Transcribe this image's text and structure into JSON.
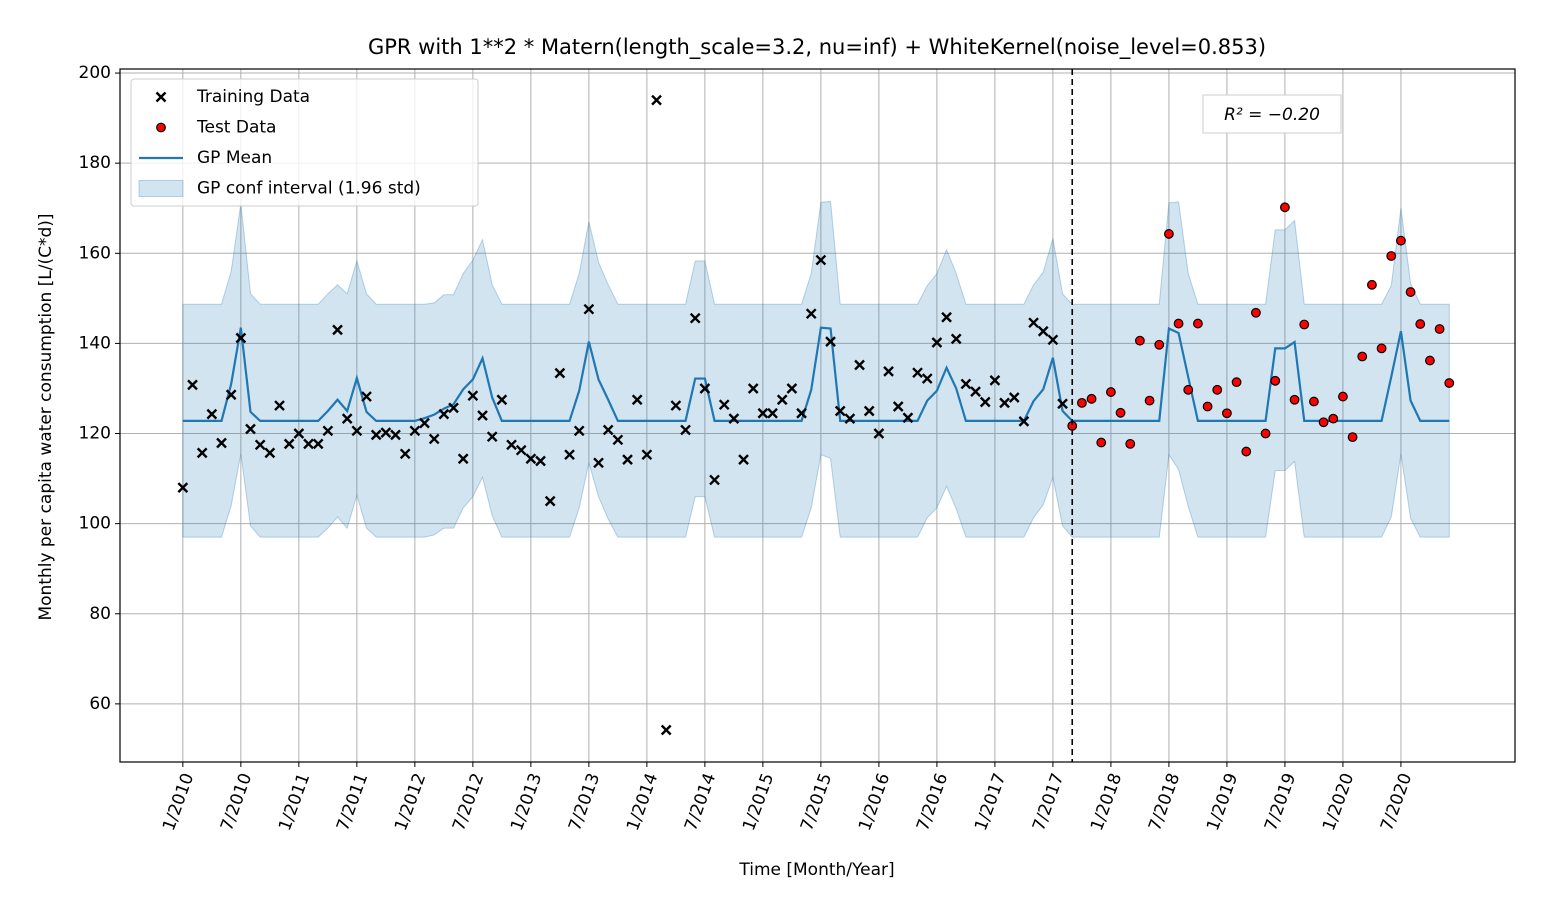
{
  "chart_data": {
    "type": "line",
    "title": "GPR with 1**2 * Matern(length_scale=3.2, nu=inf) + WhiteKernel(noise_level=0.853)",
    "xlabel": "Time [Month/Year]",
    "ylabel": "Monthly per capita water consumption [L/(C*d)]",
    "annotation": "R² = −0.20",
    "grid": true,
    "legend": "upper left",
    "split_x": 92,
    "xlim": [
      -6.5,
      137.8
    ],
    "ylim": [
      47.1,
      200.9
    ],
    "yticks": [
      60,
      80,
      100,
      120,
      140,
      160,
      180,
      200
    ],
    "xticks": [
      {
        "value": 0,
        "label": "1/2010"
      },
      {
        "value": 6,
        "label": "7/2010"
      },
      {
        "value": 12,
        "label": "1/2011"
      },
      {
        "value": 18,
        "label": "7/2011"
      },
      {
        "value": 24,
        "label": "1/2012"
      },
      {
        "value": 30,
        "label": "7/2012"
      },
      {
        "value": 36,
        "label": "1/2013"
      },
      {
        "value": 42,
        "label": "7/2013"
      },
      {
        "value": 48,
        "label": "1/2014"
      },
      {
        "value": 54,
        "label": "7/2014"
      },
      {
        "value": 60,
        "label": "1/2015"
      },
      {
        "value": 66,
        "label": "7/2015"
      },
      {
        "value": 72,
        "label": "1/2016"
      },
      {
        "value": 78,
        "label": "7/2016"
      },
      {
        "value": 84,
        "label": "1/2017"
      },
      {
        "value": 90,
        "label": "7/2017"
      },
      {
        "value": 96,
        "label": "1/2018"
      },
      {
        "value": 102,
        "label": "7/2018"
      },
      {
        "value": 108,
        "label": "1/2019"
      },
      {
        "value": 114,
        "label": "7/2019"
      },
      {
        "value": 120,
        "label": "1/2020"
      },
      {
        "value": 126,
        "label": "7/2020"
      }
    ],
    "series": [
      {
        "name": "Training Data",
        "kind": "scatter",
        "marker": "x",
        "color": "#000000",
        "x": [
          0,
          1,
          2,
          3,
          4,
          5,
          6,
          7,
          8,
          9,
          10,
          11,
          12,
          13,
          14,
          15,
          16,
          17,
          18,
          19,
          20,
          21,
          22,
          23,
          24,
          25,
          26,
          27,
          28,
          29,
          30,
          31,
          32,
          33,
          34,
          35,
          36,
          37,
          38,
          39,
          40,
          41,
          42,
          43,
          44,
          45,
          46,
          47,
          48,
          49,
          50,
          51,
          52,
          53,
          54,
          55,
          56,
          57,
          58,
          59,
          60,
          61,
          62,
          63,
          64,
          65,
          66,
          67,
          68,
          69,
          70,
          71,
          72,
          73,
          74,
          75,
          76,
          77,
          78,
          79,
          80,
          81,
          82,
          83,
          84,
          85,
          86,
          87,
          88,
          89,
          90,
          91
        ],
        "values": [
          108,
          130.8,
          115.7,
          124.3,
          117.9,
          128.6,
          141.2,
          121,
          117.5,
          115.7,
          126.2,
          117.7,
          120,
          117.7,
          117.7,
          120.6,
          143,
          123.3,
          120.6,
          128.2,
          119.7,
          120.2,
          119.7,
          115.5,
          120.6,
          122.3,
          118.8,
          124.3,
          125.7,
          114.4,
          128.4,
          124,
          119.3,
          127.5,
          117.5,
          116.3,
          114.4,
          113.9,
          105,
          133.4,
          115.3,
          120.6,
          147.6,
          113.5,
          120.8,
          118.6,
          114.2,
          127.5,
          115.3,
          194,
          54.2,
          126.2,
          120.8,
          145.6,
          130,
          109.7,
          126.4,
          123.3,
          114.2,
          130,
          124.5,
          124.5,
          127.5,
          130,
          124.5,
          146.6,
          158.5,
          140.4,
          125,
          123.3,
          135.2,
          125,
          120,
          133.8,
          126,
          123.5,
          133.5,
          132.2,
          140.2,
          145.8,
          141,
          131,
          129.3,
          127,
          131.8,
          126.8,
          128,
          122.7,
          144.6,
          142.7,
          140.8,
          126.6
        ]
      },
      {
        "name": "Test Data",
        "kind": "scatter",
        "marker": "o",
        "color": "#ff0000",
        "edgecolor": "#000000",
        "x": [
          92,
          93,
          94,
          95,
          96,
          97,
          98,
          99,
          100,
          101,
          102,
          103,
          104,
          105,
          106,
          107,
          108,
          109,
          110,
          111,
          112,
          113,
          114,
          115,
          116,
          117,
          118,
          119,
          120,
          121,
          122,
          123,
          124,
          125,
          126,
          127,
          128,
          129,
          130,
          131
        ],
        "values": [
          121.7,
          126.8,
          127.7,
          118,
          129.2,
          124.6,
          117.7,
          140.6,
          127.3,
          139.7,
          164.3,
          144.4,
          129.7,
          144.4,
          126,
          129.7,
          124.5,
          131.4,
          116,
          146.8,
          120,
          131.7,
          170.2,
          127.5,
          144.2,
          127.1,
          122.5,
          123.3,
          128.2,
          119.2,
          137.1,
          153,
          138.9,
          159.4,
          162.8,
          151.4,
          144.3,
          136.2,
          143.2,
          131.2
        ]
      },
      {
        "name": "GP Mean",
        "kind": "line",
        "color": "#1f77b4",
        "x": [
          0,
          1,
          2,
          3,
          4,
          5,
          6,
          7,
          8,
          9,
          10,
          11,
          12,
          13,
          14,
          15,
          16,
          17,
          18,
          19,
          20,
          21,
          22,
          23,
          24,
          25,
          26,
          27,
          28,
          29,
          30,
          31,
          32,
          33,
          34,
          35,
          36,
          37,
          38,
          39,
          40,
          41,
          42,
          43,
          44,
          45,
          46,
          47,
          48,
          49,
          50,
          51,
          52,
          53,
          54,
          55,
          56,
          57,
          58,
          59,
          60,
          61,
          62,
          63,
          64,
          65,
          66,
          67,
          68,
          69,
          70,
          71,
          72,
          73,
          74,
          75,
          76,
          77,
          78,
          79,
          80,
          81,
          82,
          83,
          84,
          85,
          86,
          87,
          88,
          89,
          90,
          91,
          92,
          93,
          94,
          95,
          96,
          97,
          98,
          99,
          100,
          101,
          102,
          103,
          104,
          105,
          106,
          107,
          108,
          109,
          110,
          111,
          112,
          113,
          114,
          115,
          116,
          117,
          118,
          119,
          120,
          121,
          122,
          123,
          124,
          125,
          126,
          127,
          128,
          129,
          130,
          131
        ],
        "values": [
          122.8,
          122.8,
          122.8,
          122.8,
          122.8,
          131,
          143.5,
          124.8,
          122.8,
          122.8,
          122.8,
          122.8,
          122.8,
          122.8,
          122.8,
          125,
          127.5,
          125,
          132.3,
          124.8,
          122.8,
          122.8,
          122.8,
          122.8,
          122.8,
          123.4,
          124.2,
          125.5,
          126.5,
          129.8,
          132,
          136.7,
          128,
          122.8,
          122.8,
          122.8,
          122.8,
          122.8,
          122.8,
          122.8,
          122.8,
          129.5,
          140.4,
          132,
          127.5,
          122.8,
          122.8,
          122.8,
          122.8,
          122.8,
          122.8,
          122.8,
          122.8,
          132.2,
          132.2,
          122.8,
          122.8,
          122.8,
          122.8,
          122.8,
          122.8,
          122.8,
          122.8,
          122.8,
          122.8,
          129.7,
          143.5,
          143.3,
          122.8,
          122.8,
          122.8,
          122.8,
          122.8,
          122.8,
          122.8,
          122.8,
          122.8,
          127.3,
          129.5,
          134.6,
          130,
          122.8,
          122.8,
          122.8,
          122.8,
          122.8,
          122.8,
          122.8,
          127.2,
          129.8,
          136.8,
          125,
          122.8,
          122.8,
          122.8,
          122.8,
          122.8,
          122.8,
          122.8,
          122.8,
          122.8,
          122.8,
          143.3,
          142.3,
          132.5,
          122.8,
          122.8,
          122.8,
          122.8,
          122.8,
          122.8,
          122.8,
          122.8,
          138.9,
          138.9,
          140.3,
          122.8,
          122.8,
          122.8,
          122.8,
          122.8,
          122.8,
          122.8,
          122.8,
          122.8,
          132.6,
          142.7,
          127.3,
          122.8,
          122.8,
          122.8,
          122.8
        ]
      },
      {
        "name": "GP conf interval (1.96 std)",
        "kind": "band",
        "color": "#1f77b4",
        "alpha": 0.2,
        "x": [
          0,
          1,
          2,
          3,
          4,
          5,
          6,
          7,
          8,
          9,
          10,
          11,
          12,
          13,
          14,
          15,
          16,
          17,
          18,
          19,
          20,
          21,
          22,
          23,
          24,
          25,
          26,
          27,
          28,
          29,
          30,
          31,
          32,
          33,
          34,
          35,
          36,
          37,
          38,
          39,
          40,
          41,
          42,
          43,
          44,
          45,
          46,
          47,
          48,
          49,
          50,
          51,
          52,
          53,
          54,
          55,
          56,
          57,
          58,
          59,
          60,
          61,
          62,
          63,
          64,
          65,
          66,
          67,
          68,
          69,
          70,
          71,
          72,
          73,
          74,
          75,
          76,
          77,
          78,
          79,
          80,
          81,
          82,
          83,
          84,
          85,
          86,
          87,
          88,
          89,
          90,
          91,
          92,
          93,
          94,
          95,
          96,
          97,
          98,
          99,
          100,
          101,
          102,
          103,
          104,
          105,
          106,
          107,
          108,
          109,
          110,
          111,
          112,
          113,
          114,
          115,
          116,
          117,
          118,
          119,
          120,
          121,
          122,
          123,
          124,
          125,
          126,
          127,
          128,
          129,
          130,
          131
        ],
        "upper": [
          148.7,
          148.7,
          148.7,
          148.7,
          148.7,
          156,
          171,
          151,
          148.7,
          148.7,
          148.7,
          148.7,
          148.7,
          148.7,
          148.7,
          151,
          153,
          151,
          158.3,
          151,
          148.7,
          148.7,
          148.7,
          148.7,
          148.7,
          148.7,
          149,
          150.8,
          150.8,
          155.5,
          158.5,
          163,
          153,
          148.7,
          148.7,
          148.7,
          148.7,
          148.7,
          148.7,
          148.7,
          148.7,
          155.5,
          167,
          158,
          153,
          148.7,
          148.7,
          148.7,
          148.7,
          148.7,
          148.7,
          148.7,
          148.7,
          158.3,
          158.3,
          148.7,
          148.7,
          148.7,
          148.7,
          148.7,
          148.7,
          148.7,
          148.7,
          148.7,
          148.7,
          155.5,
          171.3,
          171.5,
          148.7,
          148.7,
          148.7,
          148.7,
          148.7,
          148.7,
          148.7,
          148.7,
          148.7,
          152.8,
          155.5,
          160.8,
          155.5,
          148.7,
          148.7,
          148.7,
          148.7,
          148.7,
          148.7,
          148.7,
          153,
          155.8,
          163.3,
          151,
          148.7,
          148.7,
          148.7,
          148.7,
          148.7,
          148.7,
          148.7,
          148.7,
          148.7,
          148.7,
          171.2,
          171.4,
          155.5,
          148.7,
          148.7,
          148.7,
          148.7,
          148.7,
          148.7,
          148.7,
          148.7,
          165.2,
          165.2,
          167.3,
          148.7,
          148.7,
          148.7,
          148.7,
          148.7,
          148.7,
          148.7,
          148.7,
          148.7,
          152.8,
          170,
          153.3,
          148.7,
          148.7,
          148.7,
          148.7
        ],
        "lower": [
          97,
          97,
          97,
          97,
          97,
          104,
          115.5,
          99.5,
          97,
          97,
          97,
          97,
          97,
          97,
          97,
          99,
          101.5,
          99,
          106.3,
          99,
          97,
          97,
          97,
          97,
          97,
          97,
          97.5,
          99,
          99,
          103.5,
          106,
          110.3,
          101.8,
          97,
          97,
          97,
          97,
          97,
          97,
          97,
          97,
          103.5,
          113.5,
          106,
          101,
          97,
          97,
          97,
          97,
          97,
          97,
          97,
          97,
          106,
          106,
          97,
          97,
          97,
          97,
          97,
          97,
          97,
          97,
          97,
          97,
          103.5,
          115.3,
          114.5,
          97,
          97,
          97,
          97,
          97,
          97,
          97,
          97,
          97,
          101.3,
          103.5,
          108.3,
          103.3,
          97,
          97,
          97,
          97,
          97,
          97,
          97,
          101.3,
          104.2,
          110.3,
          99.5,
          97,
          97,
          97,
          97,
          97,
          97,
          97,
          97,
          97,
          97,
          115.3,
          112,
          103.8,
          97,
          97,
          97,
          97,
          97,
          97,
          97,
          97,
          111.8,
          111.8,
          113.8,
          97,
          97,
          97,
          97,
          97,
          97,
          97,
          97,
          97,
          101.5,
          115.5,
          101.2,
          97,
          97,
          97,
          97
        ]
      }
    ]
  }
}
